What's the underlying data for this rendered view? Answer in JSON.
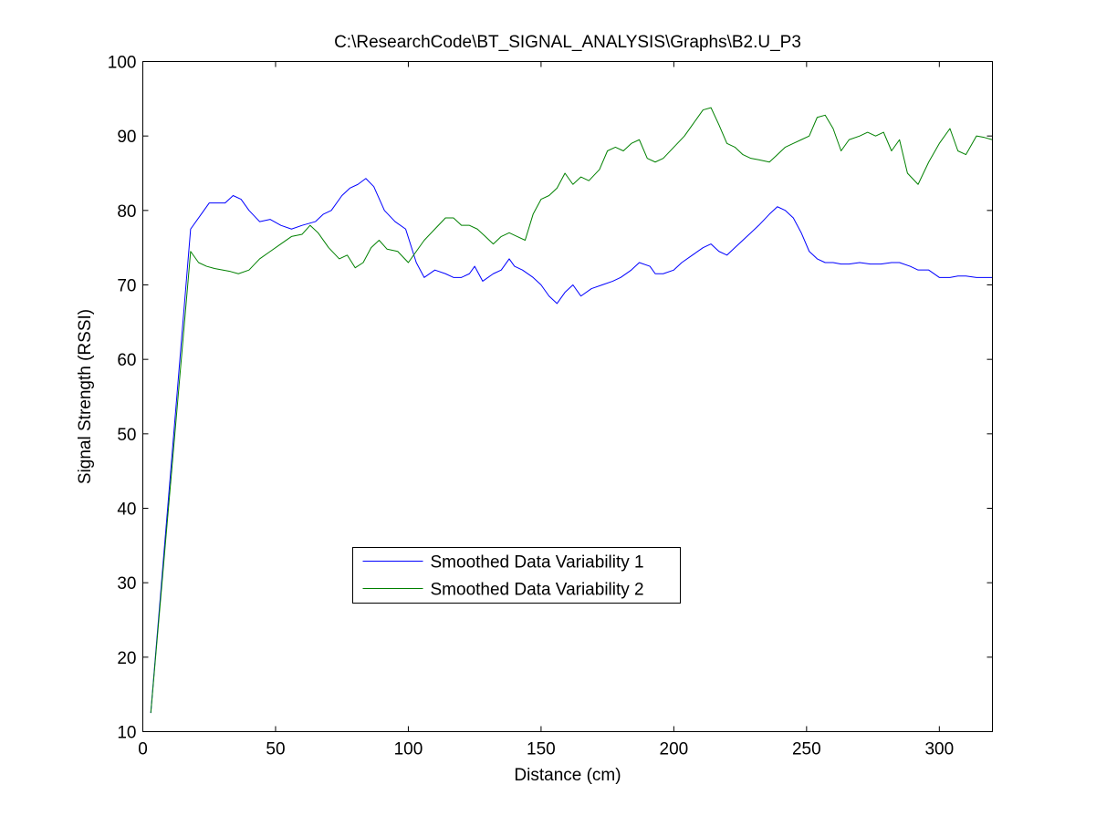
{
  "chart_data": {
    "type": "line",
    "title": "C:\\ResearchCode\\BT_SIGNAL_ANALYSIS\\Graphs\\B2.U_P3",
    "xlabel": "Distance (cm)",
    "ylabel": "Signal Strength (RSSI)",
    "xlim": [
      0,
      320
    ],
    "ylim": [
      10,
      100
    ],
    "xticks": [
      0,
      50,
      100,
      150,
      200,
      250,
      300
    ],
    "yticks": [
      10,
      20,
      30,
      40,
      50,
      60,
      70,
      80,
      90,
      100
    ],
    "grid": false,
    "legend_position": "lower-center",
    "series": [
      {
        "name": "Smoothed Data Variability 1",
        "color": "#0000ff",
        "x": [
          3,
          18,
          22,
          25,
          28,
          31,
          34,
          37,
          40,
          44,
          48,
          52,
          56,
          60,
          65,
          68,
          71,
          75,
          78,
          81,
          84,
          87,
          91,
          95,
          99,
          103,
          106,
          110,
          114,
          117,
          120,
          123,
          125,
          128,
          132,
          135,
          138,
          140,
          143,
          147,
          150,
          153,
          156,
          159,
          162,
          165,
          169,
          173,
          177,
          180,
          184,
          187,
          191,
          193,
          196,
          200,
          203,
          207,
          211,
          214,
          217,
          220,
          223,
          226,
          229,
          232,
          236,
          239,
          242,
          245,
          248,
          251,
          254,
          257,
          260,
          263,
          266,
          270,
          274,
          278,
          282,
          285,
          289,
          292,
          296,
          300,
          304,
          307,
          310,
          314,
          317,
          320
        ],
        "values": [
          12.5,
          77.5,
          79.5,
          81.0,
          81.0,
          81.0,
          82.0,
          81.5,
          80.0,
          78.5,
          78.8,
          78.0,
          77.5,
          78.0,
          78.5,
          79.5,
          80.0,
          82.0,
          83.0,
          83.5,
          84.3,
          83.2,
          80.0,
          78.5,
          77.5,
          73.0,
          71.0,
          72.0,
          71.5,
          71.0,
          71.0,
          71.5,
          72.5,
          70.5,
          71.5,
          72.0,
          73.5,
          72.5,
          72.0,
          71.0,
          70.0,
          68.5,
          67.5,
          69.0,
          70.0,
          68.5,
          69.5,
          70.0,
          70.5,
          71.0,
          72.0,
          73.0,
          72.5,
          71.5,
          71.5,
          72.0,
          73.0,
          74.0,
          75.0,
          75.5,
          74.5,
          74.0,
          75.0,
          76.0,
          77.0,
          78.0,
          79.5,
          80.5,
          80.0,
          79.0,
          77.0,
          74.5,
          73.5,
          73.0,
          73.0,
          72.8,
          72.8,
          73.0,
          72.8,
          72.8,
          73.0,
          73.0,
          72.5,
          72.0,
          72.0,
          71.0,
          71.0,
          71.2,
          71.2,
          71.0,
          71.0,
          71.0
        ]
      },
      {
        "name": "Smoothed Data Variability 2",
        "color": "#008000",
        "x": [
          3,
          18,
          21,
          24,
          27,
          30,
          33,
          36,
          40,
          44,
          48,
          52,
          56,
          60,
          63,
          66,
          70,
          74,
          77,
          80,
          83,
          86,
          89,
          92,
          96,
          100,
          103,
          106,
          110,
          114,
          117,
          120,
          123,
          126,
          129,
          132,
          135,
          138,
          141,
          144,
          147,
          150,
          153,
          156,
          159,
          162,
          165,
          168,
          172,
          175,
          178,
          181,
          184,
          187,
          190,
          193,
          196,
          200,
          204,
          207,
          211,
          214,
          217,
          220,
          223,
          226,
          229,
          232,
          236,
          239,
          242,
          245,
          248,
          251,
          254,
          257,
          260,
          263,
          266,
          270,
          273,
          276,
          279,
          282,
          285,
          288,
          292,
          296,
          300,
          304,
          307,
          310,
          314,
          317,
          320
        ],
        "values": [
          12.5,
          74.5,
          73.0,
          72.5,
          72.2,
          72.0,
          71.8,
          71.5,
          72.0,
          73.5,
          74.5,
          75.5,
          76.5,
          76.8,
          78.0,
          77.0,
          75.0,
          73.5,
          74.0,
          72.3,
          73.0,
          75.0,
          76.0,
          74.8,
          74.5,
          73.0,
          74.5,
          76.0,
          77.5,
          79.0,
          79.0,
          78.0,
          78.0,
          77.5,
          76.5,
          75.5,
          76.5,
          77.0,
          76.5,
          76.0,
          79.5,
          81.5,
          82.0,
          83.0,
          85.0,
          83.5,
          84.5,
          84.0,
          85.5,
          88.0,
          88.5,
          88.0,
          89.0,
          89.5,
          87.0,
          86.5,
          87.0,
          88.5,
          90.0,
          91.5,
          93.5,
          93.8,
          91.5,
          89.0,
          88.5,
          87.5,
          87.0,
          86.8,
          86.5,
          87.5,
          88.5,
          89.0,
          89.5,
          90.0,
          92.5,
          92.8,
          91.0,
          88.0,
          89.5,
          90.0,
          90.5,
          90.0,
          90.5,
          88.0,
          89.5,
          85.0,
          83.5,
          86.5,
          89.0,
          91.0,
          88.0,
          87.5,
          90.0,
          89.8,
          89.5
        ]
      }
    ]
  }
}
